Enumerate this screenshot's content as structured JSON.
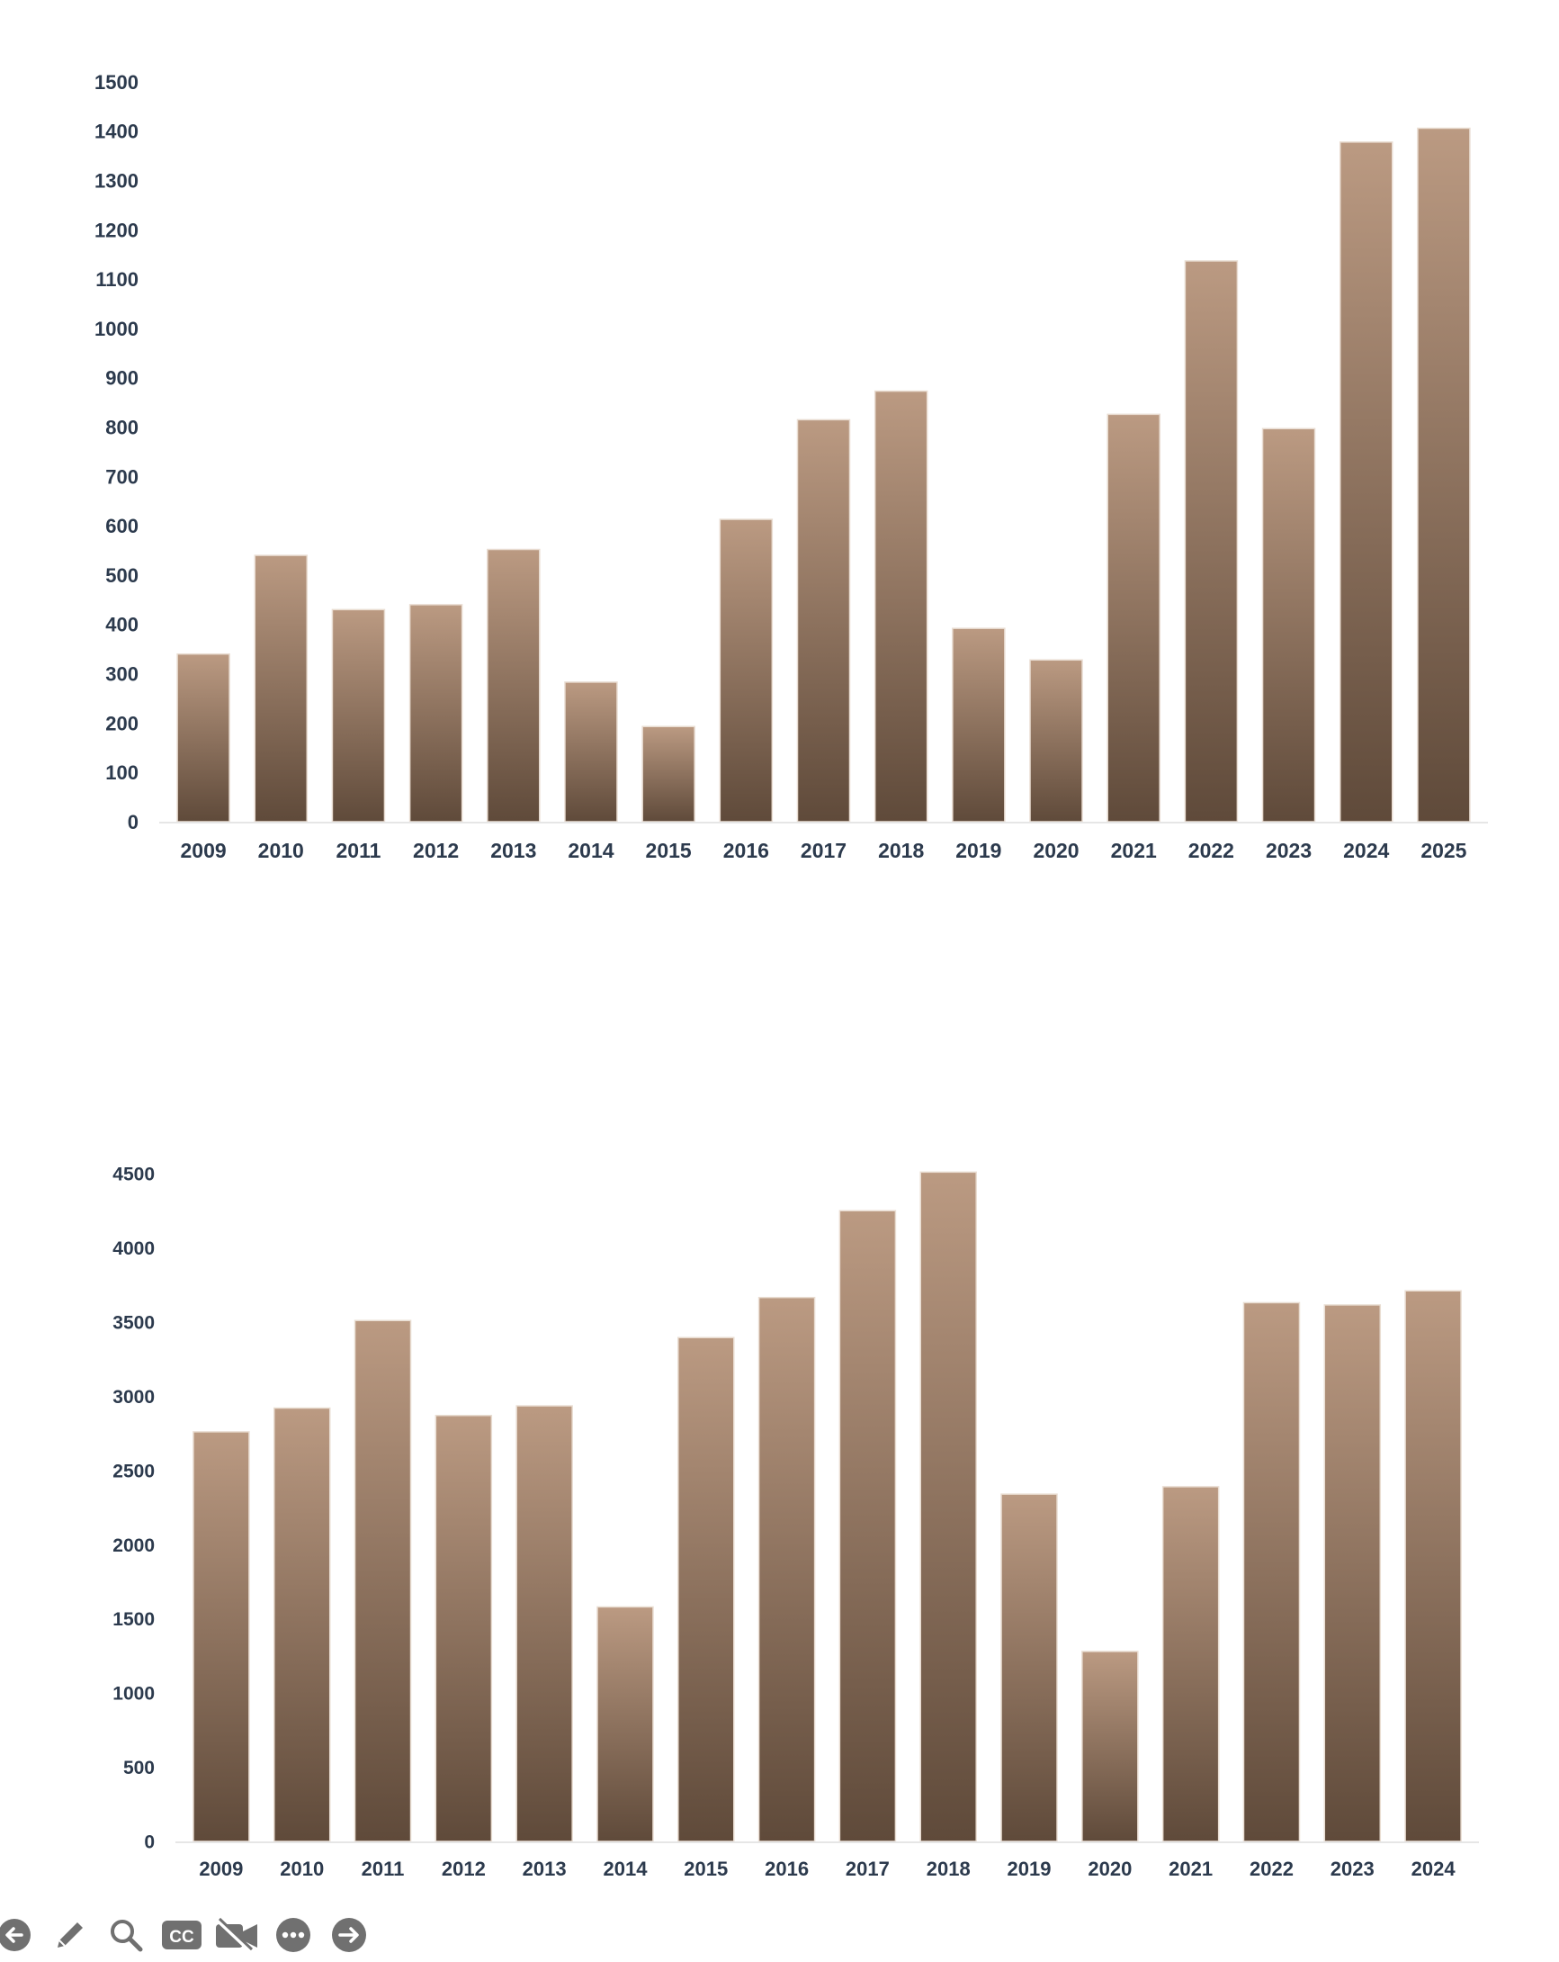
{
  "bar_color": "#8a6a52",
  "bar_gradient": [
    "#bb9a82",
    "#5f4a3a"
  ],
  "axis_text_color": "#2c3a4d",
  "chart_data": [
    {
      "type": "bar",
      "title": "",
      "xlabel": "",
      "ylabel": "",
      "categories": [
        "2009",
        "2010",
        "2011",
        "2012",
        "2013",
        "2014",
        "2015",
        "2016",
        "2017",
        "2018",
        "2019",
        "2020",
        "2021",
        "2022",
        "2023",
        "2024",
        "2025"
      ],
      "values": [
        340,
        540,
        430,
        440,
        552,
        283,
        193,
        613,
        815,
        873,
        392,
        328,
        826,
        1137,
        797,
        1378,
        1406
      ],
      "ylim": [
        0,
        1500
      ],
      "yticks": [
        "0",
        "100",
        "200",
        "300",
        "400",
        "500",
        "600",
        "700",
        "800",
        "900",
        "1000",
        "1100",
        "1200",
        "1300",
        "1400",
        "1500"
      ],
      "grid": false,
      "legend": "none"
    },
    {
      "type": "bar",
      "title": "",
      "xlabel": "",
      "ylabel": "",
      "categories": [
        "2009",
        "2010",
        "2011",
        "2012",
        "2013",
        "2014",
        "2015",
        "2016",
        "2017",
        "2018",
        "2019",
        "2020",
        "2021",
        "2022",
        "2023",
        "2024"
      ],
      "values": [
        2760,
        2920,
        3510,
        2870,
        2935,
        1580,
        3395,
        3665,
        4250,
        4510,
        2340,
        1280,
        2390,
        3630,
        3615,
        3710
      ],
      "ylim": [
        0,
        4500
      ],
      "yticks": [
        "0",
        "500",
        "1000",
        "1500",
        "2000",
        "2500",
        "3000",
        "3500",
        "4000",
        "4500"
      ],
      "grid": false,
      "legend": "none"
    }
  ],
  "toolbar": {
    "icons": [
      "arrow-left-icon",
      "pencil-icon",
      "search-icon",
      "cc-icon",
      "video-off-icon",
      "more-icon",
      "arrow-right-icon"
    ]
  }
}
